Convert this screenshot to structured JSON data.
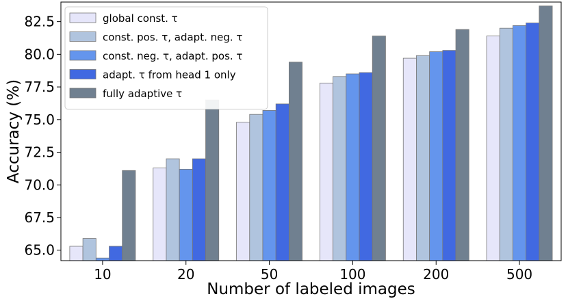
{
  "chart_data": {
    "type": "bar",
    "xlabel": "Number of labeled images",
    "ylabel": "Accuracy (%)",
    "categories": [
      "10",
      "20",
      "50",
      "100",
      "200",
      "500"
    ],
    "ylim": [
      64.2,
      84.0
    ],
    "yticks": [
      "65.0",
      "67.5",
      "70.0",
      "72.5",
      "75.0",
      "77.5",
      "80.0",
      "82.5"
    ],
    "ytick_values": [
      65.0,
      67.5,
      70.0,
      72.5,
      75.0,
      77.5,
      80.0,
      82.5
    ],
    "grid": false,
    "legend_position": "top-left",
    "series": [
      {
        "name": "global const. τ",
        "color": "#e6e6fa",
        "values": [
          65.3,
          71.3,
          74.8,
          77.8,
          79.7,
          81.4
        ]
      },
      {
        "name": "const. pos. τ, adapt. neg. τ",
        "color": "#b0c4de",
        "values": [
          65.9,
          72.0,
          75.4,
          78.3,
          79.9,
          82.0
        ]
      },
      {
        "name": "const. neg. τ, adapt. pos. τ",
        "color": "#6495ed",
        "values": [
          64.4,
          71.2,
          75.7,
          78.5,
          80.2,
          82.2
        ]
      },
      {
        "name": "adapt. τ from head 1 only",
        "color": "#4169e1",
        "values": [
          65.3,
          72.0,
          76.2,
          78.6,
          80.3,
          82.4
        ]
      },
      {
        "name": "fully adaptive τ",
        "color": "#708090",
        "values": [
          71.1,
          76.5,
          79.4,
          81.4,
          81.9,
          83.7
        ]
      }
    ]
  }
}
